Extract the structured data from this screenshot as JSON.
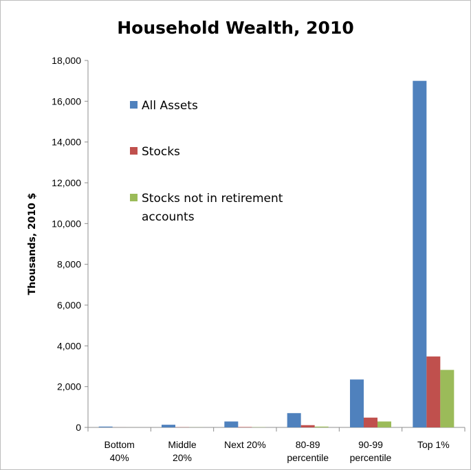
{
  "chart_data": {
    "type": "bar",
    "title": "Household Wealth, 2010",
    "xlabel": "",
    "ylabel": "Thousands, 2010 $",
    "ylim": [
      0,
      18000
    ],
    "yticks": [
      "0",
      "2,000",
      "4,000",
      "6,000",
      "8,000",
      "10,000",
      "12,000",
      "14,000",
      "16,000",
      "18,000"
    ],
    "categories": [
      [
        "Bottom",
        "40%"
      ],
      [
        "Middle",
        "20%"
      ],
      [
        "Next 20%"
      ],
      [
        "80-89",
        "percentile"
      ],
      [
        "90-99",
        "percentile"
      ],
      [
        "Top 1%"
      ]
    ],
    "series": [
      {
        "name": "All Assets",
        "color": "#4f81bd",
        "values": [
          40,
          130,
          290,
          700,
          2350,
          17000
        ]
      },
      {
        "name": "Stocks",
        "color": "#c0504d",
        "values": [
          2,
          10,
          20,
          110,
          480,
          3480
        ]
      },
      {
        "name": "Stocks not in  retirement accounts",
        "color": "#9bbb59",
        "values": [
          1,
          5,
          10,
          40,
          290,
          2820
        ]
      }
    ],
    "legend": {
      "placement": "top-left (inside plot)",
      "entries": [
        [
          "All Assets"
        ],
        [
          "Stocks"
        ],
        [
          "Stocks not in  retirement",
          "accounts"
        ]
      ]
    },
    "grid": false
  }
}
